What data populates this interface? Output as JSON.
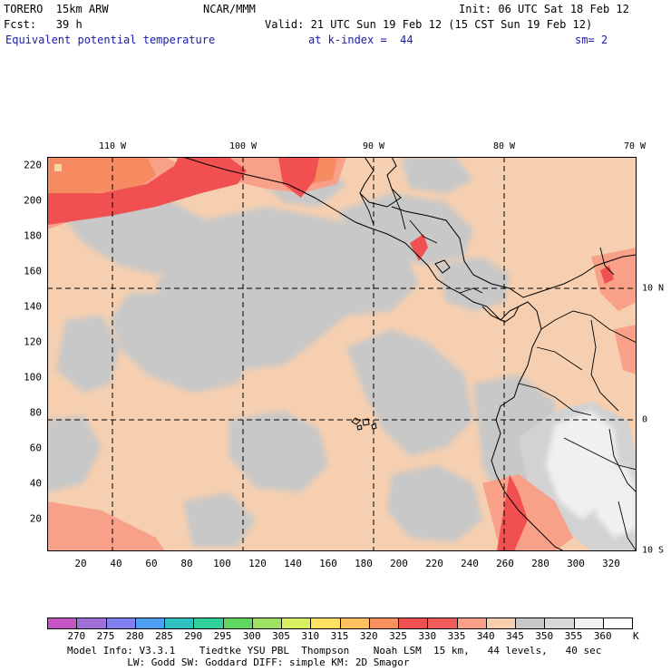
{
  "header": {
    "model": "TORERO  15km ARW",
    "org": "NCAR/MMM",
    "init": "Init: 06 UTC Sat 18 Feb 12",
    "fcst": "Fcst:   39 h",
    "valid": "Valid: 21 UTC Sun 19 Feb 12 (15 CST Sun 19 Feb 12)",
    "field": "Equivalent potential temperature",
    "level": "at k-index =  44",
    "smooth": "sm= 2"
  },
  "map": {
    "lon_labels": [
      "110 W",
      "100 W",
      "90 W",
      "80 W",
      "70 W"
    ],
    "lat_labels": [
      "10 N",
      "0",
      "10 S"
    ],
    "y_ticks": [
      "220",
      "200",
      "180",
      "160",
      "140",
      "120",
      "100",
      "80",
      "60",
      "40",
      "20"
    ],
    "x_ticks": [
      "20",
      "40",
      "60",
      "80",
      "100",
      "120",
      "140",
      "160",
      "180",
      "200",
      "220",
      "240",
      "260",
      "280",
      "300",
      "320"
    ]
  },
  "colorbar": {
    "labels": [
      "270",
      "275",
      "280",
      "285",
      "290",
      "295",
      "300",
      "305",
      "310",
      "315",
      "320",
      "325",
      "330",
      "335",
      "340",
      "345",
      "350",
      "355",
      "360"
    ],
    "unit": "K",
    "colors": [
      "#c455c4",
      "#a070d8",
      "#7f7fee",
      "#4f9ff0",
      "#30c0c0",
      "#30d09a",
      "#60d860",
      "#a0e060",
      "#d8f060",
      "#ffe060",
      "#ffc060",
      "#f89060",
      "#f05050",
      "#f05c5c",
      "#f8a088",
      "#f5cfb0",
      "#c8c8c8",
      "#d8d8d8",
      "#f2f2f2",
      "#ffffff"
    ]
  },
  "footer": {
    "line1": "Model Info: V3.3.1    Tiedtke YSU PBL  Thompson    Noah LSM  15 km,   44 levels,   40 sec",
    "line2": "          LW: Godd SW: Goddard DIFF: simple KM: 2D Smagor"
  }
}
